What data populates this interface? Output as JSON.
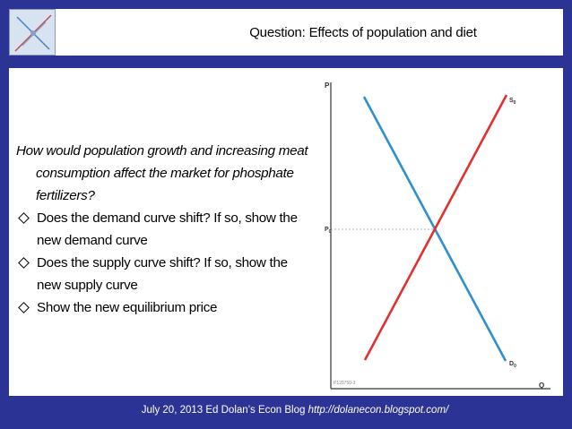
{
  "title": "Question: Effects of population and diet",
  "question": "How would population growth and increasing meat consumption affect the market for phosphate fertilizers?",
  "bullets": [
    "Does the demand curve shift? If so, show the new demand curve",
    "Does the supply curve shift? If so, show the new supply curve",
    "Show the new equilibrium price"
  ],
  "diagram": {
    "y_axis_label": "P",
    "x_axis_label": "Q",
    "price_label": "P",
    "price_label_sub": "0",
    "supply_label": "S",
    "supply_label_sub": "0",
    "demand_label": "D",
    "demand_label_sub": "0",
    "figure_id": "P120750-3",
    "supply_color": "#e03030",
    "demand_color": "#2e8fcf"
  },
  "footer": {
    "text": "July 20, 2013 Ed Dolan’s Econ Blog ",
    "url": "http://dolanecon.blogspot.com/"
  },
  "colors": {
    "background": "#2b3494",
    "panel": "#ffffff"
  }
}
